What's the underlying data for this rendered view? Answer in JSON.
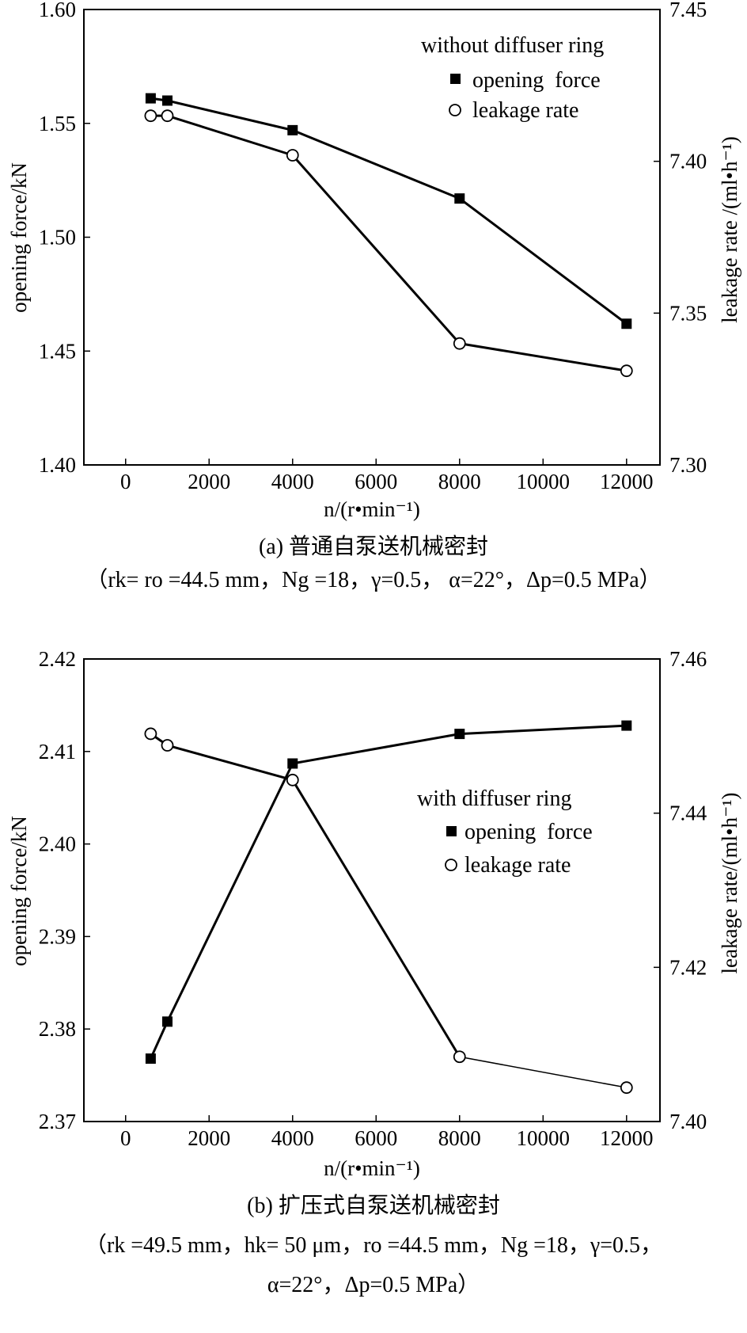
{
  "chart_data": [
    {
      "type": "line",
      "x": [
        600,
        1000,
        4000,
        8000,
        12000
      ],
      "xlim": [
        -1000,
        12800
      ],
      "xticks": [
        0,
        2000,
        4000,
        6000,
        8000,
        10000,
        12000
      ],
      "xlabel": "n/(r•min⁻¹)",
      "ylabel": "opening force/kN",
      "ylim": [
        1.4,
        1.6
      ],
      "yticks": [
        "1.40",
        "1.45",
        "1.50",
        "1.55",
        "1.60"
      ],
      "y2label": "leakage rate /(ml•h⁻¹)",
      "y2lim": [
        7.3,
        7.45
      ],
      "y2ticks": [
        "7.30",
        "7.35",
        "7.40",
        "7.45"
      ],
      "legend_title": "without diffuser ring",
      "series": [
        {
          "name": "opening  force",
          "marker": "filled-square",
          "axis": "left",
          "values": [
            1.561,
            1.56,
            1.547,
            1.517,
            1.462
          ]
        },
        {
          "name": "leakage rate",
          "marker": "open-circle",
          "axis": "right",
          "values": [
            7.415,
            7.415,
            7.402,
            7.34,
            7.331
          ]
        }
      ],
      "caption_title": "(a) 普通自泵送机械密封",
      "caption_params": "（rk= ro =44.5 mm，Ng =18，γ=0.5， α=22°，Δp=0.5 MPa）"
    },
    {
      "type": "line",
      "x": [
        600,
        1000,
        4000,
        8000,
        12000
      ],
      "xlim": [
        -1000,
        12800
      ],
      "xticks": [
        0,
        2000,
        4000,
        6000,
        8000,
        10000,
        12000
      ],
      "xlabel": "n/(r•min⁻¹)",
      "ylabel": "opening force/kN",
      "ylim": [
        2.37,
        2.42
      ],
      "yticks": [
        "2.37",
        "2.38",
        "2.39",
        "2.40",
        "2.41",
        "2.42"
      ],
      "y2label": "leakage rate/(ml•h⁻¹)",
      "y2lim": [
        7.4,
        7.46
      ],
      "y2ticks": [
        "7.40",
        "7.42",
        "7.44",
        "7.46"
      ],
      "legend_title": "with diffuser ring",
      "series": [
        {
          "name": "opening  force",
          "marker": "filled-square",
          "axis": "left",
          "values": [
            2.3768,
            2.3808,
            2.4087,
            2.4119,
            2.4128
          ]
        },
        {
          "name": "leakage rate",
          "marker": "open-circle",
          "axis": "right",
          "values": [
            7.4503,
            7.4488,
            7.4443,
            7.4084,
            7.4044
          ]
        }
      ],
      "caption_title": "(b) 扩压式自泵送机械密封",
      "caption_params_line1": "（rk =49.5 mm，hk= 50 μm，ro =44.5 mm，Ng =18，γ=0.5，",
      "caption_params_line2": "α=22°，Δp=0.5 MPa）"
    }
  ]
}
